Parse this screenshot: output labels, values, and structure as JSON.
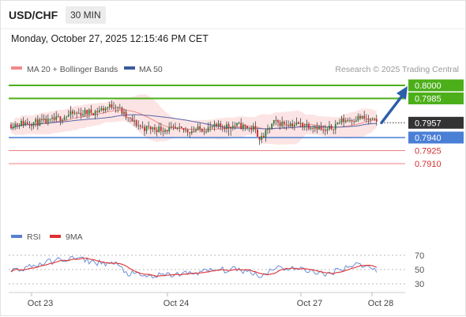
{
  "header": {
    "pair": "USD/CHF",
    "timeframe": "30 MIN",
    "datetime": "Monday, October 27, 2025 12:15:46 PM CET"
  },
  "legend": {
    "ma20_label": "MA 20 + Bollinger Bands",
    "ma50_label": "MA 50",
    "source": "Research © 2025 Trading Central"
  },
  "rsi_legend": {
    "rsi_label": "RSI",
    "ma_label": "9MA"
  },
  "colors": {
    "resistance": "#4caf1a",
    "support": "#4a7fd6",
    "minor_support": "#f08080",
    "current": "#333333",
    "arrow": "#2b5fa8",
    "candle_up": "#2e7d32",
    "candle_down": "#c62828",
    "bollinger_fill": "#fde4e4",
    "ma20": "#f08a8a",
    "ma50": "#5566aa",
    "rsi": "#6b8fd6",
    "rsi_ma": "#e03030"
  },
  "chart_data": [
    {
      "type": "candlestick",
      "title": "USD/CHF 30 MIN",
      "x_labels": [
        "Oct 23",
        "Oct 24",
        "Oct 27",
        "Oct 28"
      ],
      "y_range": [
        0.7903,
        0.8003
      ],
      "series": [
        {
          "name": "MA 20 + Bollinger Bands",
          "type": "line"
        },
        {
          "name": "MA 50",
          "type": "line"
        }
      ],
      "price_levels": [
        {
          "value": "0.8000",
          "role": "resistance"
        },
        {
          "value": "0.7985",
          "role": "resistance"
        },
        {
          "value": "0.7957",
          "role": "current"
        },
        {
          "value": "0.7940",
          "role": "support"
        },
        {
          "value": "0.7925",
          "role": "minor_support"
        },
        {
          "value": "0.7910",
          "role": "minor_support"
        }
      ],
      "arrow": {
        "direction": "up",
        "from": 0.7957,
        "to": 0.8
      }
    },
    {
      "type": "line",
      "title": "RSI",
      "series": [
        {
          "name": "RSI"
        },
        {
          "name": "9MA"
        }
      ],
      "y_ticks": [
        "70",
        "50",
        "30"
      ],
      "y_range": [
        20,
        80
      ]
    }
  ]
}
